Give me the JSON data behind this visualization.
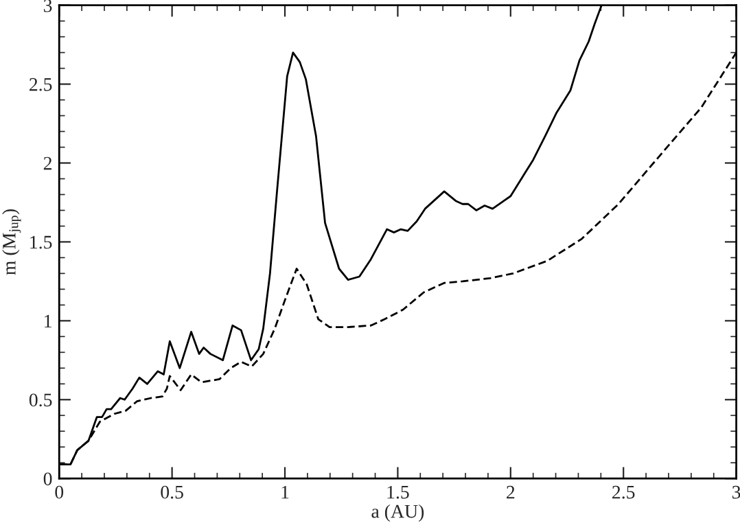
{
  "chart_data": {
    "type": "line",
    "xlabel": "a (AU)",
    "ylabel": "m (M$_{jup}$)",
    "xlim": [
      0,
      3
    ],
    "ylim": [
      0,
      3
    ],
    "xticks": [
      0,
      0.5,
      1,
      1.5,
      2,
      2.5,
      3
    ],
    "yticks": [
      0,
      0.5,
      1,
      1.5,
      2,
      2.5,
      3
    ],
    "grid": false,
    "series": [
      {
        "color": "#000000",
        "line_style": "solid",
        "x": [
          0,
          0.05,
          0.08,
          0.13,
          0.167,
          0.19,
          0.21,
          0.23,
          0.27,
          0.29,
          0.325,
          0.355,
          0.39,
          0.437,
          0.463,
          0.49,
          0.534,
          0.585,
          0.62,
          0.64,
          0.67,
          0.725,
          0.768,
          0.806,
          0.85,
          0.884,
          0.904,
          0.934,
          0.965,
          1.01,
          1.036,
          1.066,
          1.093,
          1.138,
          1.178,
          1.24,
          1.28,
          1.33,
          1.381,
          1.452,
          1.483,
          1.514,
          1.544,
          1.584,
          1.621,
          1.706,
          1.757,
          1.787,
          1.812,
          1.848,
          1.885,
          1.92,
          1.97,
          2.0,
          2.052,
          2.1,
          2.153,
          2.204,
          2.265,
          2.305,
          2.346,
          2.372,
          2.403
        ],
        "values": [
          0.09,
          0.09,
          0.18,
          0.24,
          0.39,
          0.39,
          0.44,
          0.44,
          0.51,
          0.5,
          0.57,
          0.64,
          0.6,
          0.68,
          0.66,
          0.87,
          0.7,
          0.93,
          0.79,
          0.83,
          0.79,
          0.75,
          0.97,
          0.94,
          0.75,
          0.82,
          0.95,
          1.3,
          1.82,
          2.55,
          2.7,
          2.64,
          2.53,
          2.17,
          1.62,
          1.33,
          1.26,
          1.28,
          1.39,
          1.58,
          1.56,
          1.58,
          1.57,
          1.63,
          1.71,
          1.82,
          1.76,
          1.74,
          1.74,
          1.7,
          1.73,
          1.71,
          1.76,
          1.79,
          1.91,
          2.02,
          2.17,
          2.32,
          2.46,
          2.65,
          2.77,
          2.88,
          3.0
        ]
      },
      {
        "color": "#000000",
        "line_style": "dashed",
        "x": [
          0,
          0.05,
          0.08,
          0.13,
          0.18,
          0.244,
          0.295,
          0.345,
          0.406,
          0.457,
          0.477,
          0.49,
          0.538,
          0.585,
          0.63,
          0.71,
          0.76,
          0.806,
          0.853,
          0.904,
          0.955,
          1.005,
          1.052,
          1.097,
          1.148,
          1.198,
          1.28,
          1.381,
          1.442,
          1.523,
          1.615,
          1.706,
          1.787,
          1.909,
          2.011,
          2.163,
          2.316,
          2.478,
          2.681,
          2.844,
          3.0
        ],
        "values": [
          0.09,
          0.09,
          0.18,
          0.24,
          0.36,
          0.41,
          0.43,
          0.49,
          0.51,
          0.52,
          0.57,
          0.65,
          0.56,
          0.66,
          0.61,
          0.63,
          0.7,
          0.74,
          0.71,
          0.79,
          0.95,
          1.15,
          1.33,
          1.23,
          1.01,
          0.96,
          0.96,
          0.97,
          1.01,
          1.07,
          1.18,
          1.24,
          1.25,
          1.27,
          1.3,
          1.38,
          1.52,
          1.74,
          2.08,
          2.35,
          2.7
        ]
      }
    ]
  }
}
